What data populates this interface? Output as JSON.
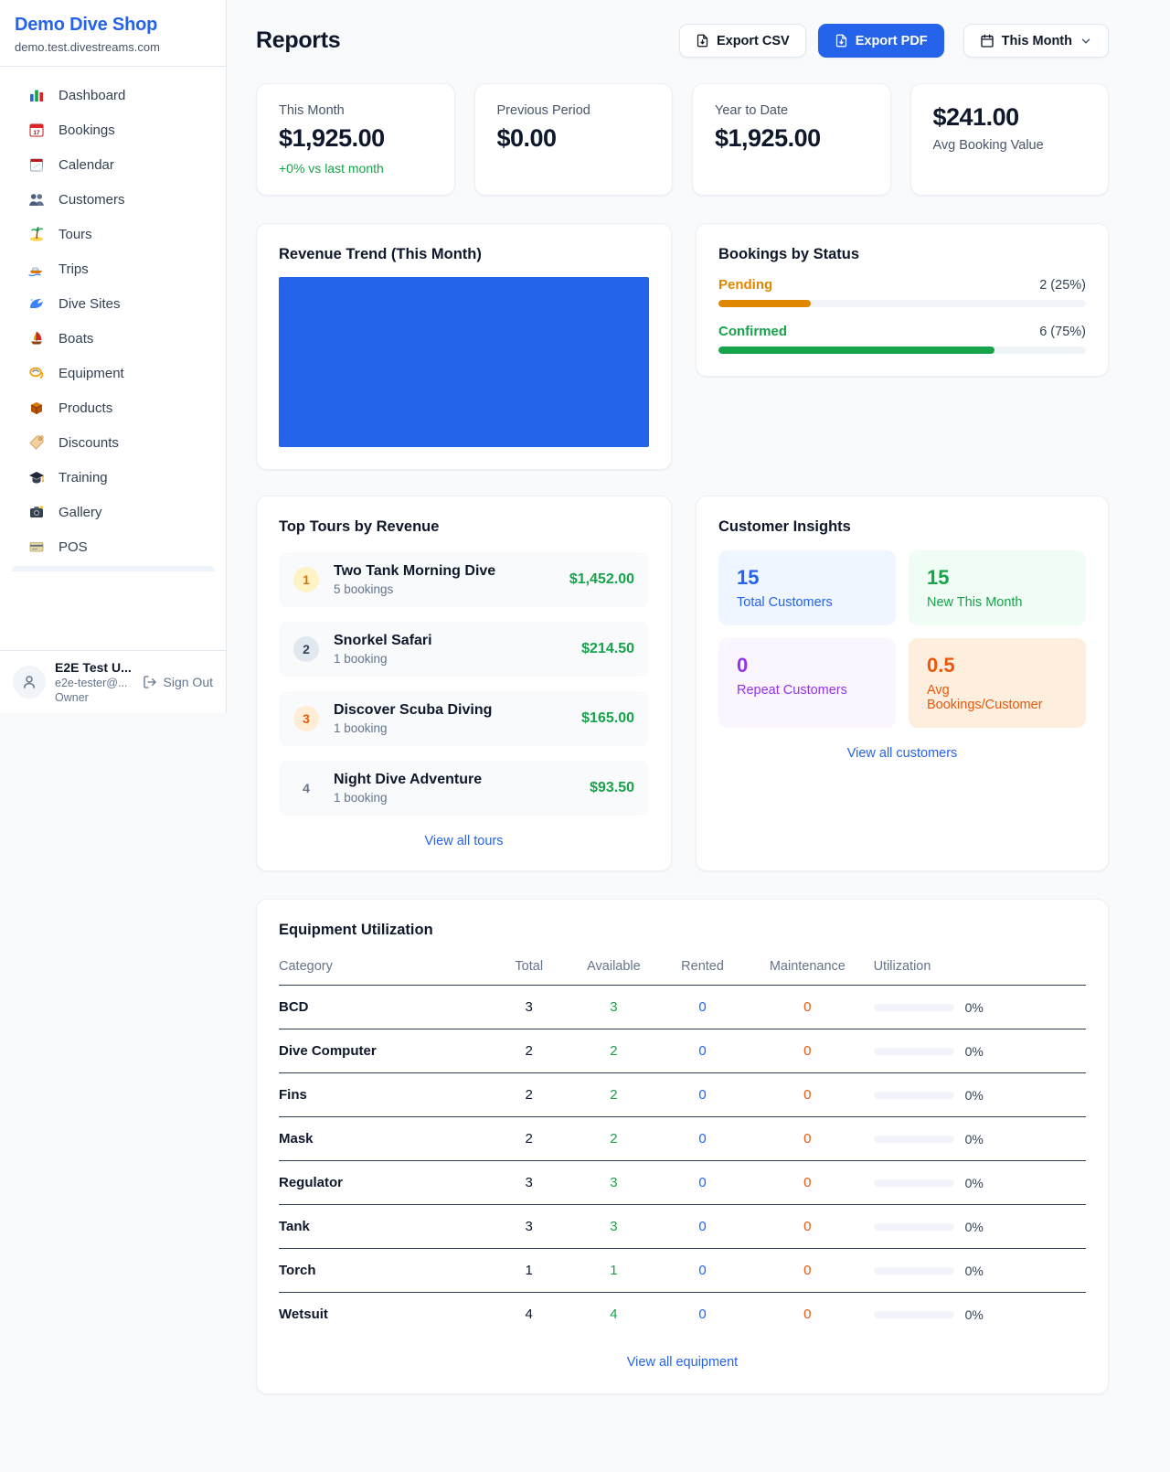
{
  "colors": {
    "accent": "#2563eb",
    "money_green": "#16a34a",
    "pending_orange": "#e08700",
    "alert_orange": "#ea580c",
    "purple": "#9333ea"
  },
  "sidebar": {
    "brand": {
      "name": "Demo Dive Shop",
      "domain": "demo.test.divestreams.com"
    },
    "nav": [
      {
        "id": "dashboard",
        "label": "Dashboard",
        "icon": "dashboard-icon"
      },
      {
        "id": "bookings",
        "label": "Bookings",
        "icon": "bookings-calendar-icon"
      },
      {
        "id": "calendar",
        "label": "Calendar",
        "icon": "calendar-icon"
      },
      {
        "id": "customers",
        "label": "Customers",
        "icon": "customers-icon"
      },
      {
        "id": "tours",
        "label": "Tours",
        "icon": "island-icon"
      },
      {
        "id": "trips",
        "label": "Trips",
        "icon": "speedboat-icon"
      },
      {
        "id": "dive-sites",
        "label": "Dive Sites",
        "icon": "wave-icon"
      },
      {
        "id": "boats",
        "label": "Boats",
        "icon": "sailboat-icon"
      },
      {
        "id": "equipment",
        "label": "Equipment",
        "icon": "dive-mask-icon"
      },
      {
        "id": "products",
        "label": "Products",
        "icon": "package-icon"
      },
      {
        "id": "discounts",
        "label": "Discounts",
        "icon": "tag-icon"
      },
      {
        "id": "training",
        "label": "Training",
        "icon": "graduation-cap-icon"
      },
      {
        "id": "gallery",
        "label": "Gallery",
        "icon": "camera-icon"
      },
      {
        "id": "pos",
        "label": "POS",
        "icon": "credit-card-icon"
      }
    ],
    "user": {
      "name": "E2E Test U...",
      "email": "e2e-tester@...",
      "role": "Owner",
      "sign_out_label": "Sign Out"
    }
  },
  "header": {
    "title": "Reports",
    "export_csv_label": "Export CSV",
    "export_pdf_label": "Export PDF",
    "period_label": "This Month"
  },
  "stats": [
    {
      "label": "This Month",
      "value": "$1,925.00",
      "change": "+0% vs last month"
    },
    {
      "label": "Previous Period",
      "value": "$0.00"
    },
    {
      "label": "Year to Date",
      "value": "$1,925.00"
    },
    {
      "label": "Avg Booking Value",
      "value": "$241.00",
      "value_first": true
    }
  ],
  "revenue_trend": {
    "title": "Revenue Trend (This Month)",
    "bar_color": "#2563eb"
  },
  "bookings_by_status": {
    "title": "Bookings by Status",
    "rows": [
      {
        "label": "Pending",
        "value": "2 (25%)",
        "pct": 25,
        "color": "#e08700"
      },
      {
        "label": "Confirmed",
        "value": "6 (75%)",
        "pct": 75,
        "color": "#16a34a"
      }
    ]
  },
  "top_tours": {
    "title": "Top Tours by Revenue",
    "link_label": "View all tours",
    "rows": [
      {
        "rank": "1",
        "badge": "gold",
        "name": "Two Tank Morning Dive",
        "bookings": "5 bookings",
        "amount": "$1,452.00"
      },
      {
        "rank": "2",
        "badge": "silver",
        "name": "Snorkel Safari",
        "bookings": "1 booking",
        "amount": "$214.50"
      },
      {
        "rank": "3",
        "badge": "bronze",
        "name": "Discover Scuba Diving",
        "bookings": "1 booking",
        "amount": "$165.00"
      },
      {
        "rank": "4",
        "badge": "plain",
        "name": "Night Dive Adventure",
        "bookings": "1 booking",
        "amount": "$93.50"
      }
    ]
  },
  "customer_insights": {
    "title": "Customer Insights",
    "link_label": "View all customers",
    "tiles": [
      {
        "value": "15",
        "label": "Total Customers",
        "bg": "#eff6ff",
        "fg": "#2563eb"
      },
      {
        "value": "15",
        "label": "New This Month",
        "bg": "#f0fdf4",
        "fg": "#16a34a"
      },
      {
        "value": "0",
        "label": "Repeat Customers",
        "bg": "#faf5ff",
        "fg": "#9333ea"
      },
      {
        "value": "0.5",
        "label": "Avg Bookings/Customer",
        "bg": "#fdeedd",
        "fg": "#ea580c"
      }
    ]
  },
  "equipment_utilization": {
    "title": "Equipment Utilization",
    "link_label": "View all equipment",
    "columns": [
      "Category",
      "Total",
      "Available",
      "Rented",
      "Maintenance",
      "Utilization"
    ],
    "rows": [
      {
        "category": "BCD",
        "total": "3",
        "available": "3",
        "rented": "0",
        "maintenance": "0",
        "utilization_pct": 0,
        "utilization": "0%"
      },
      {
        "category": "Dive Computer",
        "total": "2",
        "available": "2",
        "rented": "0",
        "maintenance": "0",
        "utilization_pct": 0,
        "utilization": "0%"
      },
      {
        "category": "Fins",
        "total": "2",
        "available": "2",
        "rented": "0",
        "maintenance": "0",
        "utilization_pct": 0,
        "utilization": "0%"
      },
      {
        "category": "Mask",
        "total": "2",
        "available": "2",
        "rented": "0",
        "maintenance": "0",
        "utilization_pct": 0,
        "utilization": "0%"
      },
      {
        "category": "Regulator",
        "total": "3",
        "available": "3",
        "rented": "0",
        "maintenance": "0",
        "utilization_pct": 0,
        "utilization": "0%"
      },
      {
        "category": "Tank",
        "total": "3",
        "available": "3",
        "rented": "0",
        "maintenance": "0",
        "utilization_pct": 0,
        "utilization": "0%"
      },
      {
        "category": "Torch",
        "total": "1",
        "available": "1",
        "rented": "0",
        "maintenance": "0",
        "utilization_pct": 0,
        "utilization": "0%"
      },
      {
        "category": "Wetsuit",
        "total": "4",
        "available": "4",
        "rented": "0",
        "maintenance": "0",
        "utilization_pct": 0,
        "utilization": "0%"
      }
    ]
  }
}
